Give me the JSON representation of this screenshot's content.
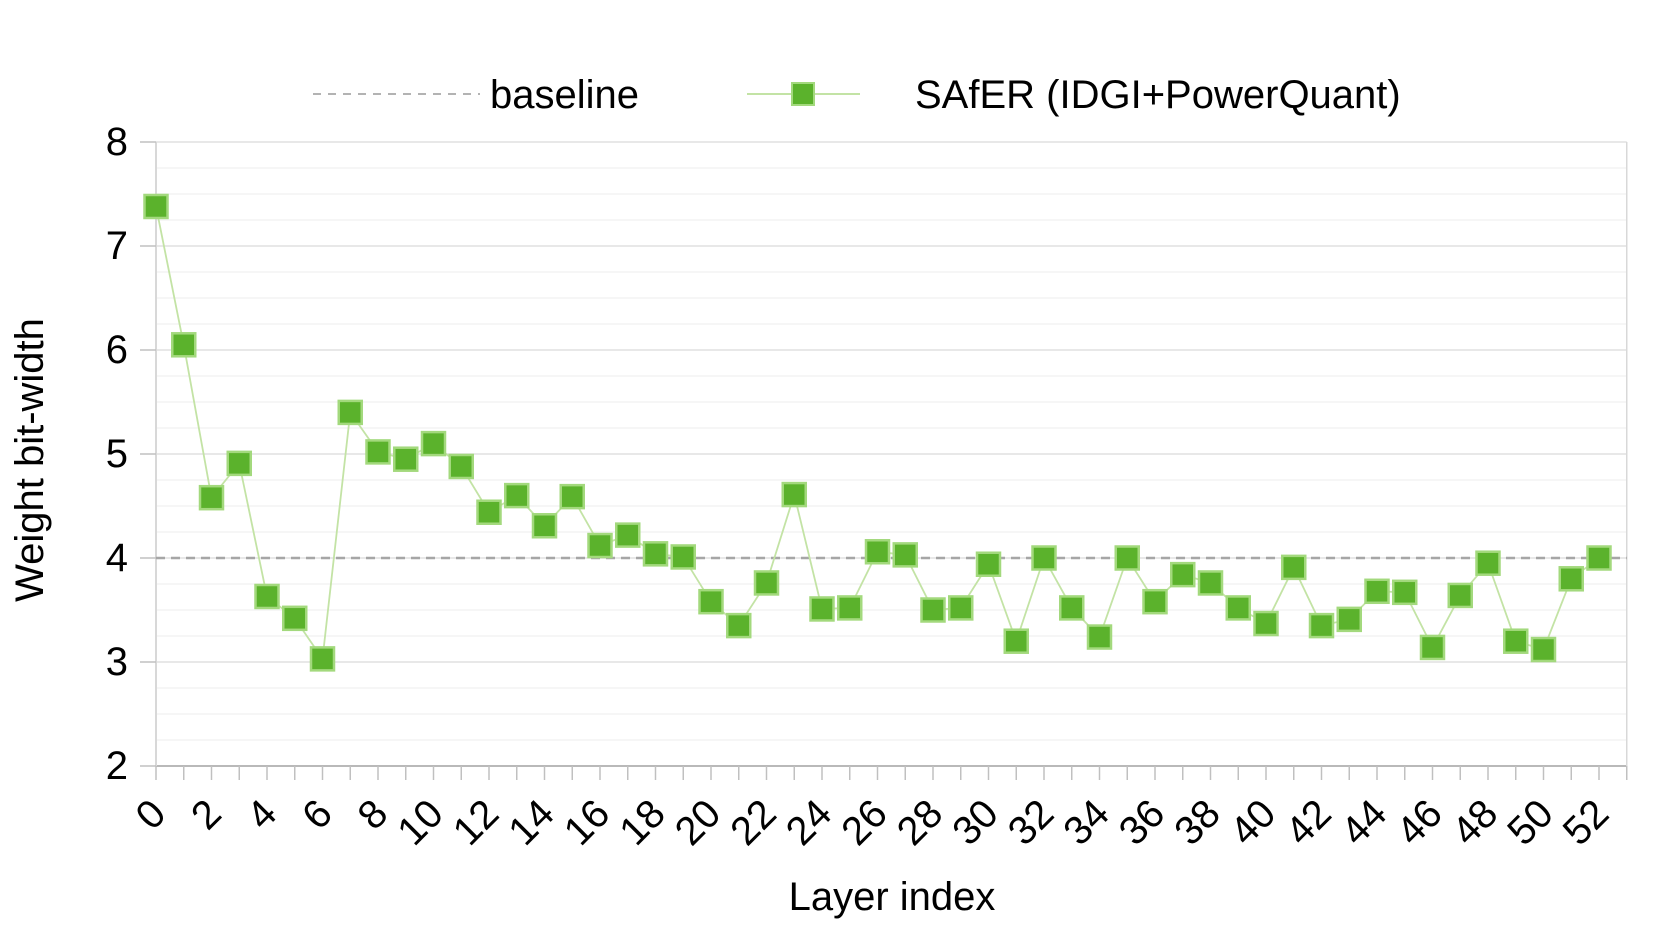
{
  "page": {
    "background": "#ffffff"
  },
  "legend": {
    "baseline_label": "baseline",
    "safer_label": "SAfER (IDGI+PowerQuant)"
  },
  "chart_data": {
    "type": "line",
    "title": "",
    "xlabel": "Layer index",
    "ylabel": "Weight bit-width",
    "x": [
      0,
      1,
      2,
      3,
      4,
      5,
      6,
      7,
      8,
      9,
      10,
      11,
      12,
      13,
      14,
      15,
      16,
      17,
      18,
      19,
      20,
      21,
      22,
      23,
      24,
      25,
      26,
      27,
      28,
      29,
      30,
      31,
      32,
      33,
      34,
      35,
      36,
      37,
      38,
      39,
      40,
      41,
      42,
      43,
      44,
      45,
      46,
      47,
      48,
      49,
      50,
      51,
      52
    ],
    "series": [
      {
        "name": "SAfER (IDGI+PowerQuant)",
        "marker": "square",
        "values": [
          7.38,
          6.05,
          4.58,
          4.91,
          3.63,
          3.42,
          3.03,
          5.4,
          5.02,
          4.95,
          5.1,
          4.88,
          4.44,
          4.6,
          4.31,
          4.59,
          4.12,
          4.22,
          4.04,
          4.01,
          3.58,
          3.35,
          3.76,
          4.61,
          3.51,
          3.52,
          4.06,
          4.03,
          3.5,
          3.52,
          3.94,
          3.2,
          4.0,
          3.52,
          3.24,
          4.0,
          3.58,
          3.84,
          3.76,
          3.52,
          3.37,
          3.91,
          3.35,
          3.41,
          3.68,
          3.67,
          3.14,
          3.64,
          3.95,
          3.2,
          3.12,
          3.8,
          4.0
        ]
      }
    ],
    "baseline": {
      "name": "baseline",
      "value": 4
    },
    "ylim": [
      2,
      8
    ],
    "yticks": [
      2,
      3,
      4,
      5,
      6,
      7,
      8
    ],
    "xtick_labels": [
      0,
      2,
      4,
      6,
      8,
      10,
      12,
      14,
      16,
      18,
      20,
      22,
      24,
      26,
      28,
      30,
      32,
      34,
      36,
      38,
      40,
      42,
      44,
      46,
      48,
      50,
      52
    ],
    "grid": {
      "major": true,
      "minor": true,
      "minor_interval": 0.25
    },
    "legend_position": "top",
    "style": {
      "marker_fill": "#5bb22c",
      "marker_border": "#a3d97d",
      "series_line": "#c3e3a5",
      "baseline_dash": "#a6a6a6",
      "legend_dash": "#b3b3b3",
      "grid_major": "#e0e0e0",
      "grid_minor": "#f3f3f3",
      "axis_line": "#b9b9b9",
      "side_line": "#d8d8d8",
      "tick_mark": "#c0c0c0",
      "text_color": "#000000"
    }
  }
}
